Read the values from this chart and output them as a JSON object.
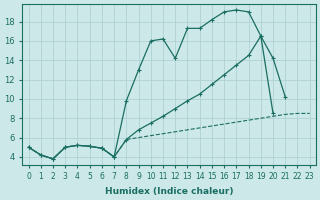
{
  "background_color": "#cce8e8",
  "grid_color": "#aacece",
  "line_color": "#1a6e62",
  "xlabel": "Humidex (Indice chaleur)",
  "xlim": [
    -0.5,
    23.5
  ],
  "ylim": [
    3.2,
    19.8
  ],
  "yticks": [
    4,
    6,
    8,
    10,
    12,
    14,
    16,
    18
  ],
  "xticks": [
    0,
    1,
    2,
    3,
    4,
    5,
    6,
    7,
    8,
    9,
    10,
    11,
    12,
    13,
    14,
    15,
    16,
    17,
    18,
    19,
    20,
    21,
    22,
    23
  ],
  "line_upper_x": [
    0,
    1,
    2,
    3,
    4,
    5,
    6,
    7,
    8,
    9,
    10,
    11,
    12,
    13,
    14,
    15,
    16,
    17,
    18,
    19,
    20,
    21
  ],
  "line_upper_y": [
    5.0,
    4.2,
    3.8,
    5.0,
    5.2,
    5.1,
    4.9,
    4.0,
    9.8,
    13.0,
    16.0,
    16.2,
    14.2,
    17.3,
    17.3,
    18.2,
    19.0,
    19.2,
    19.0,
    16.5,
    14.2,
    10.2
  ],
  "line_diag_x": [
    0,
    1,
    2,
    3,
    4,
    5,
    6,
    7,
    8,
    9,
    10,
    11,
    12,
    13,
    14,
    15,
    16,
    17,
    18,
    19,
    20,
    21,
    22,
    23
  ],
  "line_diag_y": [
    5.0,
    4.2,
    3.8,
    5.0,
    5.2,
    5.1,
    4.9,
    4.0,
    5.8,
    6.8,
    7.5,
    8.2,
    9.0,
    9.8,
    10.5,
    11.5,
    12.5,
    13.5,
    14.5,
    16.5,
    8.5,
    null,
    null,
    null
  ],
  "line_lower_x": [
    0,
    1,
    2,
    3,
    4,
    5,
    6,
    7,
    8,
    9,
    10,
    11,
    12,
    13,
    14,
    15,
    16,
    17,
    18,
    19,
    20,
    21,
    22,
    23
  ],
  "line_lower_y": [
    5.0,
    4.2,
    3.8,
    5.0,
    5.2,
    5.1,
    4.9,
    4.0,
    5.8,
    6.0,
    6.2,
    6.4,
    6.6,
    6.8,
    7.0,
    7.2,
    7.4,
    7.6,
    7.8,
    8.0,
    8.2,
    8.4,
    8.5,
    8.5
  ]
}
